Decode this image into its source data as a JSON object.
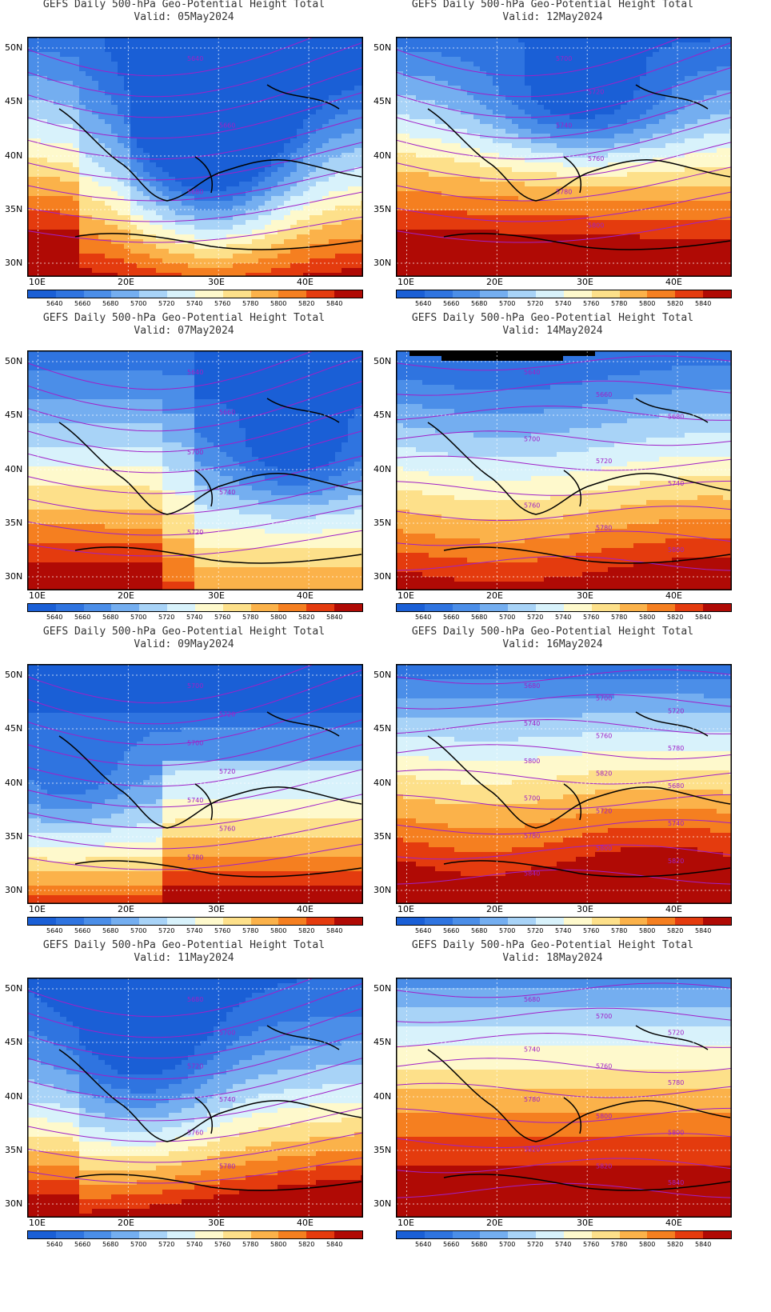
{
  "panels": [
    {
      "title": "GEFS Daily 500-hPa Geo-Potential Height Total",
      "valid": "Valid: 05May2024",
      "pattern": "trough-east",
      "labels": [
        "5640",
        "5660",
        "5680"
      ]
    },
    {
      "title": "GEFS Daily 500-hPa Geo-Potential Height Total",
      "valid": "Valid: 12May2024",
      "pattern": "trough-north",
      "labels": [
        "5700",
        "5720",
        "5740",
        "5760",
        "5780",
        "5800"
      ]
    },
    {
      "title": "GEFS Daily 500-hPa Geo-Potential Height Total",
      "valid": "Valid: 07May2024",
      "pattern": "trough-center",
      "labels": [
        "5640",
        "5660",
        "5700",
        "5740",
        "5720"
      ]
    },
    {
      "title": "GEFS Daily 500-hPa Geo-Potential Height Total",
      "valid": "Valid: 14May2024",
      "pattern": "zonal-mid",
      "labels": [
        "5640",
        "5660",
        "5680",
        "5700",
        "5720",
        "5740",
        "5760",
        "5780",
        "5800"
      ]
    },
    {
      "title": "GEFS Daily 500-hPa Geo-Potential Height Total",
      "valid": "Valid: 09May2024",
      "pattern": "cutoff-west",
      "labels": [
        "5700",
        "5720",
        "5700",
        "5720",
        "5740",
        "5760",
        "5780"
      ]
    },
    {
      "title": "GEFS Daily 500-hPa Geo-Potential Height Total",
      "valid": "Valid: 16May2024",
      "pattern": "zonal-high",
      "labels": [
        "5680",
        "5700",
        "5720",
        "5740",
        "5760",
        "5780",
        "5800",
        "5820",
        "5680",
        "5700",
        "5720",
        "5740",
        "5780",
        "5800",
        "5820",
        "5840"
      ]
    },
    {
      "title": "GEFS Daily 500-hPa Geo-Potential Height Total",
      "valid": "Valid: 11May2024",
      "pattern": "trough-deep",
      "labels": [
        "5680",
        "5700",
        "5720",
        "5740",
        "5760",
        "5780"
      ]
    },
    {
      "title": "GEFS Daily 500-hPa Geo-Potential Height Total",
      "valid": "Valid: 18May2024",
      "pattern": "ridge",
      "labels": [
        "5680",
        "5700",
        "5720",
        "5740",
        "5760",
        "5780",
        "5780",
        "5800",
        "5800",
        "5820",
        "5820",
        "5840"
      ]
    }
  ],
  "axes": {
    "lat_ticks": [
      "50N",
      "45N",
      "40N",
      "35N",
      "30N"
    ],
    "lon_ticks": [
      "10E",
      "20E",
      "30E",
      "40E"
    ]
  },
  "colorbar": {
    "levels": [
      "5640",
      "5660",
      "5680",
      "5700",
      "5720",
      "5740",
      "5760",
      "5780",
      "5800",
      "5820",
      "5840"
    ],
    "colors": [
      "#1a5fd6",
      "#2f74e0",
      "#4b8ee8",
      "#74aef0",
      "#a8d3f7",
      "#d8f2fb",
      "#fef9cc",
      "#fde08a",
      "#fbb24a",
      "#f57f20",
      "#e43b0e",
      "#b00a05"
    ]
  }
}
